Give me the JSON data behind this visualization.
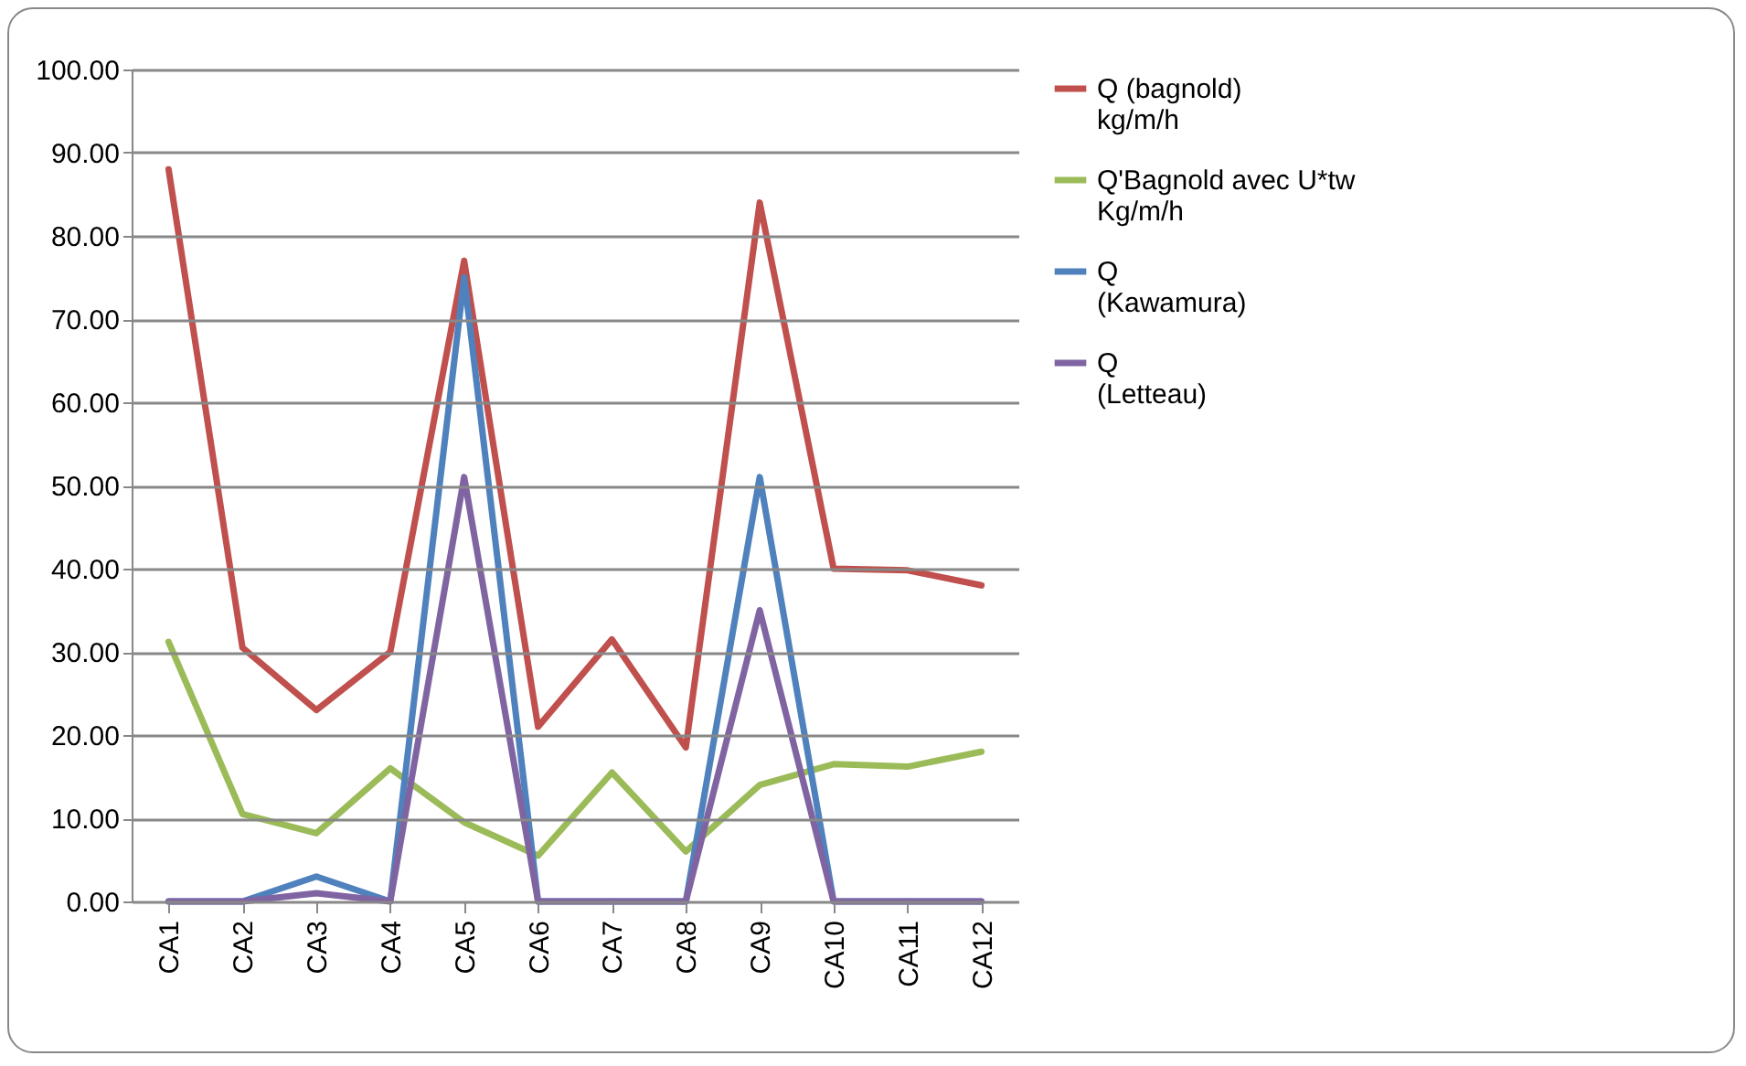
{
  "chart_data": {
    "type": "line",
    "categories": [
      "CA1",
      "CA2",
      "CA3",
      "CA4",
      "CA5",
      "CA6",
      "CA7",
      "CA8",
      "CA9",
      "CA10",
      "CA11",
      "CA12"
    ],
    "series": [
      {
        "name": "Q  (bagnold) kg/m/h",
        "color": "#c0504d",
        "values": [
          88,
          30.5,
          23,
          30,
          77,
          21,
          31.5,
          18.5,
          84,
          40,
          39.8,
          38
        ]
      },
      {
        "name": "Q'Bagnold avec U*tw Kg/m/h",
        "color": "#9bbb59",
        "values": [
          31.2,
          10.5,
          8.2,
          16,
          9.5,
          5.5,
          15.5,
          6,
          14,
          16.5,
          16.2,
          18
        ]
      },
      {
        "name": "Q (Kawamura)",
        "color": "#4f81bd",
        "values": [
          0,
          0,
          3,
          0,
          75,
          0,
          0,
          0,
          51,
          0,
          0,
          0
        ]
      },
      {
        "name": "Q (Letteau)",
        "color": "#8064a2",
        "values": [
          0,
          0,
          1,
          0,
          51,
          0,
          0,
          0,
          35,
          0,
          0,
          0
        ]
      }
    ],
    "ylim": [
      0,
      100
    ],
    "yticks": [
      {
        "value": 0,
        "label": "0.00"
      },
      {
        "value": 10,
        "label": "10.00"
      },
      {
        "value": 20,
        "label": "20.00"
      },
      {
        "value": 30,
        "label": "30.00"
      },
      {
        "value": 40,
        "label": "40.00"
      },
      {
        "value": 50,
        "label": "50.00"
      },
      {
        "value": 60,
        "label": "60.00"
      },
      {
        "value": 70,
        "label": "70.00"
      },
      {
        "value": 80,
        "label": "80.00"
      },
      {
        "value": 90,
        "label": "90.00"
      },
      {
        "value": 100,
        "label": "100.00"
      }
    ],
    "grid": "y",
    "legend": "right",
    "marker": "none",
    "line_style": "solid"
  }
}
